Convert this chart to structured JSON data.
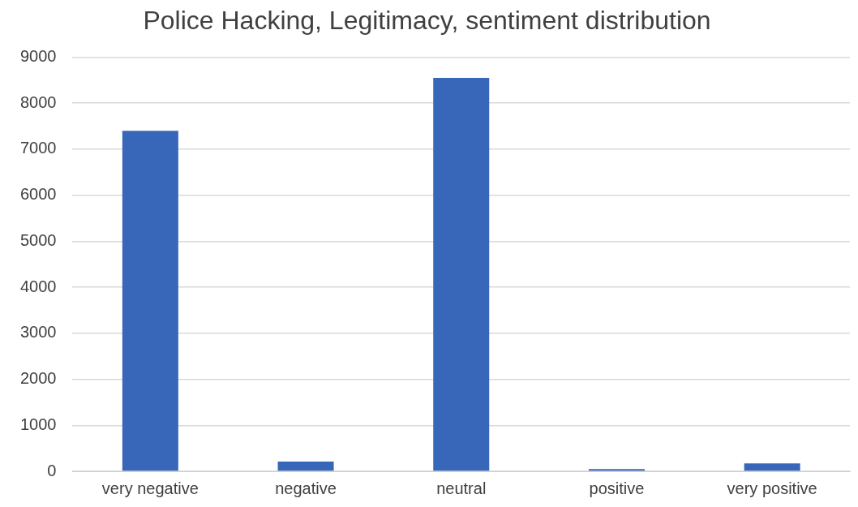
{
  "chart_data": {
    "type": "bar",
    "title": "Police Hacking, Legitimacy, sentiment distribution",
    "categories": [
      "very negative",
      "negative",
      "neutral",
      "positive",
      "very positive"
    ],
    "values": [
      7400,
      210,
      8550,
      50,
      170
    ],
    "color": "#3866b8",
    "ylim": [
      0,
      9000
    ],
    "yticks": [
      0,
      1000,
      2000,
      3000,
      4000,
      5000,
      6000,
      7000,
      8000,
      9000
    ],
    "grid": "y"
  }
}
